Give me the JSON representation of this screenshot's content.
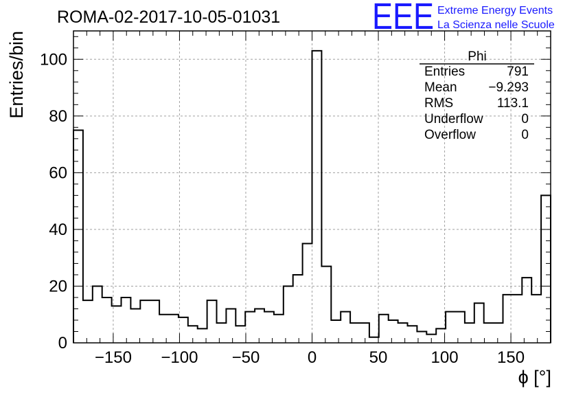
{
  "run_title": "ROMA-02-2017-10-05-01031",
  "logo": {
    "mark": "EEE",
    "line1": "Extreme Energy Events",
    "line2": "La Scienza nelle Scuole",
    "color": "#1a1aff"
  },
  "stats_box": {
    "title": "Phi",
    "rows": [
      {
        "label": "Entries",
        "value": "791"
      },
      {
        "label": "Mean",
        "value": "−9.293"
      },
      {
        "label": "RMS",
        "value": "113.1"
      },
      {
        "label": "Underflow",
        "value": "0"
      },
      {
        "label": "Overflow",
        "value": "0"
      }
    ]
  },
  "chart_data": {
    "type": "bar",
    "histogram": "step",
    "xlabel": "ϕ [°]",
    "ylabel": "Entries/bin",
    "xlim": [
      -180,
      180
    ],
    "ylim": [
      0,
      110
    ],
    "grid": true,
    "bin_width": 7.2,
    "bin_edges_start": -180,
    "x_ticks": [
      -150,
      -100,
      -50,
      0,
      50,
      100,
      150
    ],
    "x_tick_labels": [
      "−150",
      "−100",
      "−50",
      "0",
      "50",
      "100",
      "150"
    ],
    "y_ticks": [
      0,
      20,
      40,
      60,
      80,
      100
    ],
    "y_tick_labels": [
      "0",
      "20",
      "40",
      "60",
      "80",
      "100"
    ],
    "series": [
      {
        "values": [
          75,
          15,
          20,
          16,
          13,
          16,
          12,
          15,
          15,
          10,
          10,
          9,
          6,
          5,
          15,
          7,
          12,
          6,
          11,
          12,
          11,
          10,
          20,
          24,
          35,
          103,
          27,
          8,
          11,
          7,
          7,
          2,
          10,
          8,
          7,
          6,
          4,
          3,
          5,
          11,
          11,
          7,
          14,
          7,
          7,
          17,
          17,
          23,
          17,
          52
        ]
      }
    ]
  }
}
